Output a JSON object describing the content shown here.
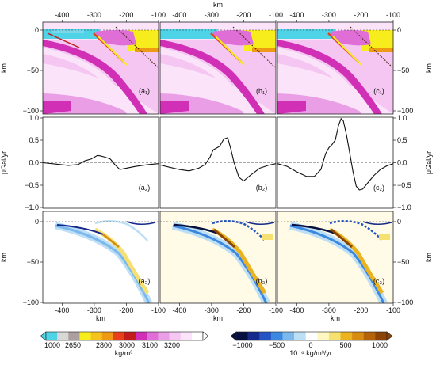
{
  "figure": {
    "top_axis_label": "km",
    "bottom_axis_label": "km",
    "x_ticks": [
      "-400",
      "-300",
      "-200",
      "-100"
    ],
    "x_ticks_values": [
      -400,
      -300,
      -200,
      -100
    ],
    "density_colorbar": {
      "labels": [
        "1000",
        "2650",
        "2800",
        "3000",
        "3100",
        "3200"
      ],
      "unit": "kg/m³",
      "colors": [
        "#4fd3e6",
        "#d8d8d8",
        "#ab9f9f",
        "#f7ec1c",
        "#f5c31c",
        "#ef9a14",
        "#e8401a",
        "#c21c1c",
        "#d02fb6",
        "#e06ed7",
        "#ea9ee6",
        "#f4c6f1",
        "#fbe3fa",
        "#ffffff"
      ]
    },
    "rate_colorbar": {
      "labels": [
        "−1000",
        "−500",
        "0",
        "500",
        "1000"
      ],
      "unit": "10⁻⁶ kg/m³/yr",
      "colors": [
        "#07103f",
        "#152a8a",
        "#2454c4",
        "#3c88e0",
        "#7ab8ee",
        "#bcdff5",
        "#ffffff",
        "#fff7c0",
        "#f5e070",
        "#eab31f",
        "#d78b11",
        "#b5630b",
        "#8b4405"
      ]
    }
  },
  "panels_top": [
    {
      "label": "(a₁)",
      "y_label": "km",
      "y_ticks": [
        "0",
        "−50",
        "−100"
      ],
      "side": "left"
    },
    {
      "label": "(b₁)",
      "y_label": "",
      "y_ticks": [],
      "side": "none"
    },
    {
      "label": "(c₁)",
      "y_label": "km",
      "y_ticks": [
        "0",
        "−50",
        "−100"
      ],
      "side": "right"
    }
  ],
  "panels_mid": [
    {
      "label": "(a₂)",
      "y_label": "μGal/yr",
      "y_ticks": [
        "1.0",
        "0.5",
        "0.0",
        "−0.5",
        "−1.0"
      ],
      "side": "left"
    },
    {
      "label": "(b₂)",
      "y_label": "",
      "y_ticks": [],
      "side": "none"
    },
    {
      "label": "(c₂)",
      "y_label": "μGal/yr",
      "y_ticks": [
        "1.0",
        "0.5",
        "0.0",
        "−0.5",
        "−1.0"
      ],
      "side": "right"
    }
  ],
  "panels_bot": [
    {
      "label": "(a₃)",
      "y_label": "km",
      "y_ticks": [
        "0",
        "−50",
        "−100"
      ],
      "side": "left"
    },
    {
      "label": "(b₃)",
      "y_label": "",
      "y_ticks": [],
      "side": "none"
    },
    {
      "label": "(c₃)",
      "y_label": "km",
      "y_ticks": [
        "0",
        "−50",
        "−100"
      ],
      "side": "right"
    }
  ],
  "chart_data": [
    {
      "type": "line",
      "panel": "(a₂)",
      "x": [
        -460,
        -420,
        -380,
        -350,
        -330,
        -310,
        -300,
        -290,
        -280,
        -265,
        -250,
        -235,
        -220,
        -200,
        -170,
        -130,
        -100
      ],
      "y": [
        0.0,
        -0.03,
        -0.06,
        -0.04,
        0.04,
        0.08,
        0.12,
        0.16,
        0.15,
        0.12,
        0.08,
        -0.05,
        -0.15,
        -0.12,
        -0.08,
        -0.04,
        -0.02
      ],
      "xlim": [
        -460,
        -100
      ],
      "ylim": [
        -1.0,
        1.0
      ]
    },
    {
      "type": "line",
      "panel": "(b₂)",
      "x": [
        -460,
        -430,
        -400,
        -370,
        -340,
        -320,
        -305,
        -295,
        -285,
        -275,
        -262,
        -250,
        -240,
        -230,
        -215,
        -200,
        -180,
        -150,
        -120,
        -100
      ],
      "y": [
        -0.05,
        -0.1,
        -0.15,
        -0.18,
        -0.12,
        -0.04,
        0.12,
        0.28,
        0.32,
        0.36,
        0.52,
        0.55,
        0.3,
        0.0,
        -0.32,
        -0.4,
        -0.28,
        -0.12,
        -0.05,
        -0.02
      ],
      "xlim": [
        -460,
        -100
      ],
      "ylim": [
        -1.0,
        1.0
      ]
    },
    {
      "type": "line",
      "panel": "(c₂)",
      "x": [
        -460,
        -430,
        -400,
        -370,
        -345,
        -325,
        -310,
        -300,
        -290,
        -280,
        -270,
        -262,
        -255,
        -245,
        -235,
        -225,
        -215,
        -205,
        -195,
        -180,
        -160,
        -140,
        -120,
        -100
      ],
      "y": [
        -0.02,
        -0.08,
        -0.2,
        -0.3,
        -0.3,
        -0.15,
        0.2,
        0.33,
        0.4,
        0.5,
        0.82,
        0.97,
        0.92,
        0.6,
        0.2,
        -0.2,
        -0.52,
        -0.6,
        -0.58,
        -0.45,
        -0.28,
        -0.15,
        -0.07,
        -0.02
      ],
      "xlim": [
        -460,
        -100
      ],
      "ylim": [
        -1.0,
        1.0
      ]
    }
  ]
}
